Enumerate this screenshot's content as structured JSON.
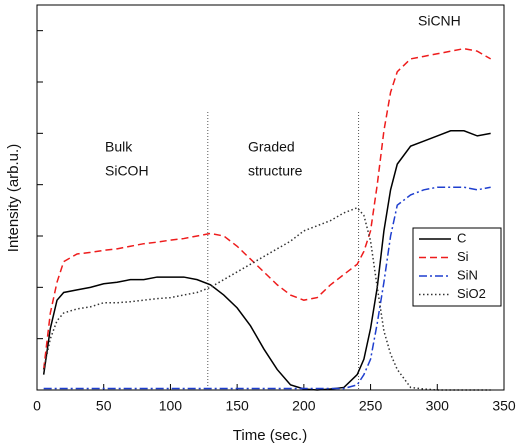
{
  "chart_data": {
    "type": "line",
    "x_label": "Time (sec.)",
    "y_label": "Intensity (arb.u.)",
    "xlim": [
      0,
      350
    ],
    "xticks": [
      0,
      50,
      100,
      150,
      200,
      250,
      300,
      350
    ],
    "ylim": [
      0,
      7.5
    ],
    "yticks": [
      0,
      1,
      2,
      3,
      4,
      5,
      6,
      7
    ],
    "ytick_labels": false,
    "x": [
      5,
      10,
      15,
      20,
      30,
      40,
      50,
      60,
      70,
      80,
      90,
      100,
      110,
      120,
      130,
      140,
      150,
      160,
      170,
      180,
      190,
      200,
      210,
      220,
      230,
      240,
      245,
      250,
      255,
      260,
      265,
      270,
      280,
      290,
      300,
      310,
      320,
      330,
      340
    ],
    "series": [
      {
        "name": "C",
        "color": "#000000",
        "style": "solid",
        "values": [
          0.3,
          1.2,
          1.75,
          1.9,
          1.95,
          2.0,
          2.07,
          2.1,
          2.15,
          2.15,
          2.2,
          2.2,
          2.2,
          2.15,
          2.05,
          1.85,
          1.6,
          1.25,
          0.8,
          0.4,
          0.1,
          0.02,
          0,
          0.02,
          0.05,
          0.3,
          0.6,
          1.2,
          2.0,
          3.1,
          3.9,
          4.4,
          4.75,
          4.85,
          4.95,
          5.05,
          5.05,
          4.95,
          5.0
        ]
      },
      {
        "name": "Si",
        "color": "#ee1c1c",
        "style": "dashed",
        "values": [
          0.4,
          1.5,
          2.1,
          2.5,
          2.65,
          2.68,
          2.72,
          2.75,
          2.8,
          2.85,
          2.88,
          2.92,
          2.95,
          3.0,
          3.05,
          3.0,
          2.8,
          2.55,
          2.3,
          2.05,
          1.85,
          1.75,
          1.8,
          2.05,
          2.25,
          2.45,
          2.7,
          3.1,
          4.0,
          5.05,
          5.8,
          6.2,
          6.45,
          6.5,
          6.55,
          6.6,
          6.65,
          6.6,
          6.45
        ]
      },
      {
        "name": "SiN",
        "color": "#1f3fcf",
        "style": "dashdot",
        "values": [
          0.03,
          0.03,
          0.03,
          0.03,
          0.03,
          0.03,
          0.03,
          0.03,
          0.03,
          0.03,
          0.03,
          0.03,
          0.03,
          0.03,
          0.03,
          0.03,
          0.03,
          0.03,
          0.03,
          0.03,
          0.03,
          0.03,
          0.03,
          0.03,
          0.03,
          0.1,
          0.3,
          0.6,
          1.3,
          2.1,
          3.0,
          3.6,
          3.8,
          3.9,
          3.95,
          3.95,
          3.95,
          3.9,
          3.95
        ]
      },
      {
        "name": "SiO2",
        "color": "#333333",
        "style": "dotted",
        "values": [
          0.4,
          1.0,
          1.35,
          1.5,
          1.58,
          1.62,
          1.7,
          1.7,
          1.72,
          1.75,
          1.78,
          1.8,
          1.85,
          1.9,
          2.0,
          2.15,
          2.3,
          2.45,
          2.6,
          2.75,
          2.9,
          3.1,
          3.2,
          3.3,
          3.45,
          3.55,
          3.4,
          2.9,
          2.0,
          1.15,
          0.7,
          0.4,
          0.05,
          0.02,
          0,
          0,
          0,
          0,
          0
        ]
      }
    ],
    "vlines": [
      128,
      241
    ],
    "annotations": [
      {
        "lines": [
          "Bulk",
          "SiCOH"
        ]
      },
      {
        "lines": [
          "Graded",
          "structure"
        ]
      },
      {
        "lines": [
          "SiCNH"
        ]
      }
    ],
    "legend": "right"
  }
}
